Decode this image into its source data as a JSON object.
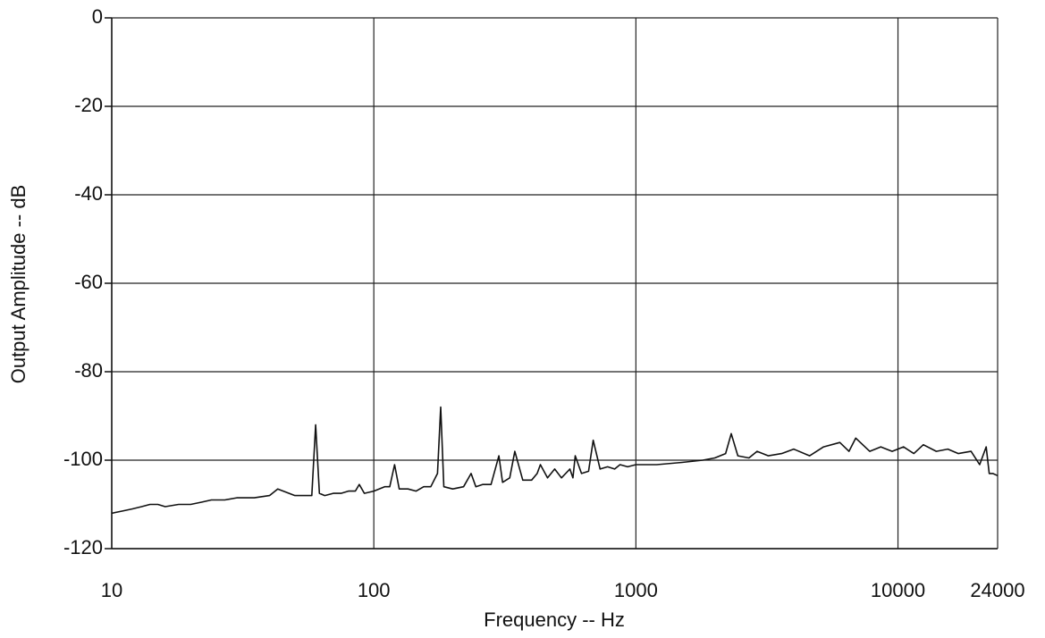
{
  "chart_data": {
    "type": "line",
    "x_label": "Frequency -- Hz",
    "y_label": "Output Amplitude -- dB",
    "x_scale": "log",
    "xlim": [
      10,
      24000
    ],
    "xticks": [
      10,
      100,
      1000,
      10000,
      24000
    ],
    "ylim": [
      -120,
      0
    ],
    "yticks": [
      0,
      -20,
      -40,
      -60,
      -80,
      -100,
      -120
    ],
    "grid": true,
    "color": "#111111",
    "x": [
      10,
      11,
      12,
      13,
      14,
      15,
      16,
      18,
      20,
      22,
      24,
      27,
      30,
      35,
      40,
      43,
      50,
      55,
      58,
      60,
      62,
      65,
      70,
      75,
      80,
      85,
      88,
      92,
      100,
      110,
      115,
      120,
      125,
      135,
      145,
      155,
      165,
      175,
      180,
      185,
      200,
      220,
      235,
      245,
      260,
      280,
      300,
      310,
      330,
      345,
      370,
      400,
      420,
      432,
      460,
      490,
      520,
      560,
      575,
      587,
      620,
      660,
      687,
      730,
      780,
      830,
      870,
      930,
      1000,
      1200,
      1500,
      1800,
      2000,
      2200,
      2310,
      2450,
      2700,
      2900,
      3200,
      3600,
      4000,
      4600,
      5200,
      6000,
      6500,
      6900,
      7800,
      8600,
      9500,
      10500,
      11500,
      12500,
      14000,
      15500,
      17000,
      19000,
      20500,
      21700,
      22300,
      23000,
      24000
    ],
    "values": [
      -112,
      -111.5,
      -111,
      -110.5,
      -110,
      -110,
      -110.5,
      -110,
      -110,
      -109.5,
      -109,
      -109,
      -108.5,
      -108.5,
      -108,
      -106.5,
      -108,
      -108,
      -108,
      -92,
      -107.5,
      -108,
      -107.5,
      -107.5,
      -107,
      -107,
      -105.5,
      -107.5,
      -107,
      -106,
      -106,
      -101,
      -106.5,
      -106.5,
      -107,
      -106,
      -106,
      -103,
      -88,
      -106,
      -106.5,
      -106,
      -103,
      -106,
      -105.5,
      -105.5,
      -99,
      -105,
      -104,
      -98,
      -104.5,
      -104.5,
      -103,
      -101,
      -104,
      -102,
      -104,
      -102,
      -104,
      -99,
      -103,
      -102.5,
      -95.5,
      -102,
      -101.5,
      -102,
      -101,
      -101.5,
      -101,
      -101,
      -100.5,
      -100,
      -99.5,
      -98.5,
      -94,
      -99,
      -99.5,
      -98,
      -99,
      -98.5,
      -97.5,
      -99,
      -97,
      -96,
      -98,
      -95,
      -98,
      -97,
      -98,
      -97,
      -98.5,
      -96.5,
      -98,
      -97.5,
      -98.5,
      -98,
      -101,
      -97,
      -103,
      -103,
      -103.5
    ]
  }
}
